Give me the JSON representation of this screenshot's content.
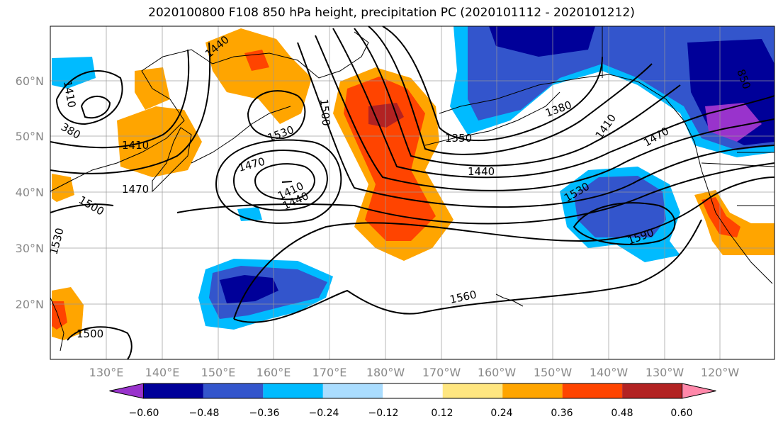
{
  "title": "2020100800 F108 850 hPa height, precipitation PC (2020101112 - 2020101212)",
  "lat_labels": [
    "60°N",
    "50°N",
    "40°N",
    "30°N",
    "20°N"
  ],
  "lon_labels": [
    "130°E",
    "140°E",
    "150°E",
    "160°E",
    "170°E",
    "180°W",
    "170°W",
    "160°W",
    "150°W",
    "140°W",
    "130°W",
    "120°W"
  ],
  "contour_labels": [
    "1410",
    "1440",
    "380",
    "1410",
    "1470",
    "1500",
    "1530",
    "1530",
    "1500",
    "1470",
    "1410",
    "1440",
    "1350",
    "1440",
    "1380",
    "1410",
    "1470",
    "850",
    "1530",
    "1590",
    "1560",
    "1500"
  ],
  "colorbar": {
    "ticks": [
      "−0.60",
      "−0.48",
      "−0.36",
      "−0.24",
      "−0.12",
      "0.12",
      "0.24",
      "0.36",
      "0.48",
      "0.60"
    ],
    "colors": [
      "#9933cc",
      "#000099",
      "#3355cc",
      "#00bbff",
      "#aaddff",
      "#ffffff",
      "#ffe680",
      "#ffa500",
      "#ff4400",
      "#b22222",
      "#ff88aa"
    ]
  }
}
